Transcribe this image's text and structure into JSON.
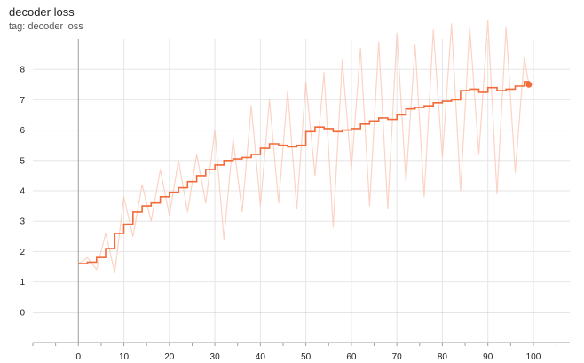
{
  "header": {
    "title": "decoder loss",
    "tag_line": "tag: decoder loss"
  },
  "colors": {
    "smoothed": "#f26b38",
    "raw": "#fbc4b0",
    "grid": "#e6e6e6",
    "axis": "#9e9e9e"
  },
  "chart_data": {
    "type": "line",
    "title": "decoder loss",
    "subtitle": "tag: decoder loss",
    "xlabel": "",
    "ylabel": "",
    "xlim": [
      -10,
      108
    ],
    "ylim": [
      -1,
      9
    ],
    "grid": true,
    "x_ticks": [
      0,
      10,
      20,
      30,
      40,
      50,
      60,
      70,
      80,
      90,
      100
    ],
    "y_ticks": [
      0,
      1,
      2,
      3,
      4,
      5,
      6,
      7,
      8
    ],
    "x_minor_ticks": [
      -10,
      -5,
      0,
      5,
      10,
      15,
      20,
      25,
      30,
      35,
      40,
      45,
      50,
      55,
      60,
      65,
      70,
      75,
      80,
      85,
      90,
      95,
      100,
      105
    ],
    "series": [
      {
        "role": "raw",
        "x": [
          0,
          2,
          4,
          6,
          8,
          10,
          12,
          14,
          16,
          18,
          20,
          22,
          24,
          26,
          28,
          30,
          32,
          34,
          36,
          38,
          40,
          42,
          44,
          46,
          48,
          50,
          52,
          54,
          56,
          58,
          60,
          62,
          64,
          66,
          68,
          70,
          72,
          74,
          76,
          78,
          80,
          82,
          84,
          86,
          88,
          90,
          92,
          94,
          96,
          98,
          99
        ],
        "values": [
          1.6,
          1.8,
          1.4,
          2.6,
          1.3,
          3.8,
          2.5,
          4.2,
          3.0,
          4.7,
          3.2,
          5.0,
          3.3,
          5.2,
          3.6,
          6.0,
          2.4,
          5.7,
          3.3,
          6.8,
          3.5,
          7.0,
          3.6,
          7.3,
          3.4,
          7.6,
          4.5,
          7.9,
          2.8,
          8.3,
          4.7,
          8.7,
          3.5,
          8.9,
          3.4,
          9.2,
          4.3,
          8.8,
          3.8,
          9.3,
          5.1,
          9.5,
          4.0,
          9.4,
          5.2,
          9.6,
          3.9,
          9.4,
          4.6,
          8.4,
          7.5
        ]
      },
      {
        "role": "smoothed",
        "x": [
          0,
          2,
          4,
          6,
          8,
          10,
          12,
          14,
          16,
          18,
          20,
          22,
          24,
          26,
          28,
          30,
          32,
          34,
          36,
          38,
          40,
          42,
          44,
          46,
          48,
          50,
          52,
          54,
          56,
          58,
          60,
          62,
          64,
          66,
          68,
          70,
          72,
          74,
          76,
          78,
          80,
          82,
          84,
          86,
          88,
          90,
          92,
          94,
          96,
          98,
          99
        ],
        "values": [
          1.6,
          1.65,
          1.8,
          2.1,
          2.6,
          2.9,
          3.3,
          3.5,
          3.6,
          3.8,
          3.95,
          4.1,
          4.3,
          4.5,
          4.7,
          4.85,
          5.0,
          5.05,
          5.1,
          5.2,
          5.4,
          5.55,
          5.5,
          5.45,
          5.5,
          5.95,
          6.1,
          6.05,
          5.95,
          6.0,
          6.05,
          6.2,
          6.3,
          6.4,
          6.35,
          6.5,
          6.7,
          6.75,
          6.8,
          6.9,
          6.95,
          7.0,
          7.3,
          7.35,
          7.25,
          7.4,
          7.3,
          7.35,
          7.45,
          7.6,
          7.5
        ]
      }
    ]
  }
}
